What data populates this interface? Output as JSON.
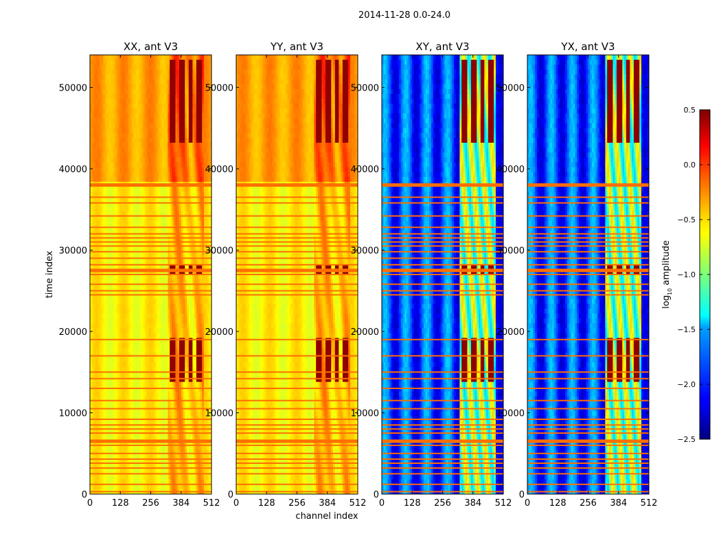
{
  "figure": {
    "suptitle": "2014-11-28 0.0-24.0"
  },
  "chart_data": {
    "type": "heatmap",
    "title": "2014-11-28 0.0-24.0",
    "xlabel": "channel index",
    "ylabel": "time index",
    "xlim": [
      0,
      512
    ],
    "ylim": [
      0,
      54000
    ],
    "xticks": [
      0,
      128,
      256,
      384,
      512
    ],
    "yticks": [
      0,
      10000,
      20000,
      30000,
      40000,
      50000
    ],
    "colormap": "jet",
    "colorbar": {
      "label_main": "log",
      "label_sub": "10",
      "label_rest": " amplitude",
      "range": [
        -2.5,
        0.5
      ],
      "ticks": [
        0.5,
        0.0,
        -0.5,
        -1.0,
        -1.5,
        -2.0,
        -2.5
      ],
      "tick_labels": [
        "0.5",
        "0.0",
        "−0.5",
        "−1.0",
        "−1.5",
        "−2.0",
        "−2.5"
      ]
    },
    "panels": [
      {
        "title": "XX, ant V3",
        "base_level": -0.6,
        "early_level": -0.35,
        "kind": "co"
      },
      {
        "title": "YY, ant V3",
        "base_level": -0.6,
        "early_level": -0.35,
        "kind": "co"
      },
      {
        "title": "XY, ant V3",
        "base_level": -1.9,
        "early_level": -1.9,
        "kind": "cross"
      },
      {
        "title": "YX, ant V3",
        "base_level": -1.9,
        "early_level": -1.9,
        "kind": "cross"
      }
    ],
    "flagged_rows": [
      38000,
      36500,
      35800,
      34200,
      32800,
      32000,
      31500,
      31000,
      30500,
      29800,
      29000,
      28200,
      27500,
      27000,
      25800,
      25000,
      24500,
      19000,
      17000,
      15000,
      14200,
      13000,
      11500,
      10500,
      9200,
      8500,
      8000,
      7500,
      6500,
      6000,
      5000,
      4300,
      3800,
      3200,
      2500,
      1200,
      300
    ],
    "flagged_level": -0.2,
    "rfi_channel_range": [
      330,
      480
    ],
    "rfi_strong_time_ranges": [
      [
        14000,
        19000
      ],
      [
        27000,
        28000
      ],
      [
        43000,
        53500
      ]
    ]
  }
}
